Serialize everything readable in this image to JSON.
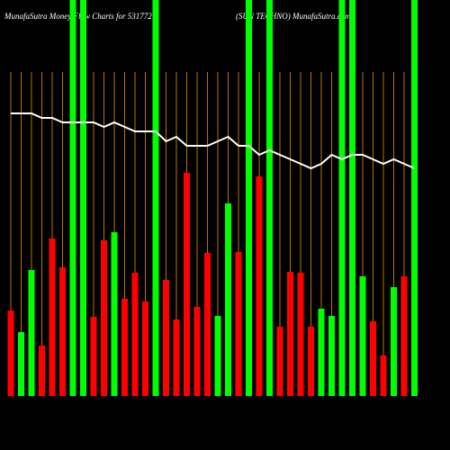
{
  "chart_data": {
    "type": "bar-line",
    "title": "MunafaSutra  Money Flow  Charts for 531772",
    "subtitle": "(SUN TECHNO) MunafaSutra.com",
    "categories": [
      null,
      null,
      null,
      null,
      null,
      null,
      null,
      null,
      null,
      null,
      null,
      null,
      null,
      null,
      null,
      null,
      null,
      null,
      null,
      null,
      null,
      null,
      null,
      null,
      null,
      null,
      null,
      null,
      null,
      null,
      null,
      null,
      null,
      null,
      null,
      null,
      null,
      null,
      null,
      null
    ],
    "ylim": [
      0,
      440
    ],
    "series": [
      {
        "kind": "bar",
        "values": [
          95,
          71,
          140,
          56,
          175,
          143,
          440,
          440,
          88,
          173,
          182,
          108,
          137,
          105,
          440,
          129,
          85,
          248,
          99,
          159,
          89,
          214,
          160,
          440,
          244,
          440,
          77,
          138,
          137,
          77,
          97,
          89,
          440,
          440,
          133,
          83,
          45,
          121,
          133,
          440
        ],
        "colors": [
          "#ff0000",
          "#00ff00",
          "#00ff00",
          "#ff0000",
          "#ff0000",
          "#ff0000",
          "#00ff00",
          "#00ff00",
          "#ff0000",
          "#ff0000",
          "#00ff00",
          "#ff0000",
          "#ff0000",
          "#ff0000",
          "#00ff00",
          "#ff0000",
          "#ff0000",
          "#ff0000",
          "#ff0000",
          "#ff0000",
          "#00ff00",
          "#00ff00",
          "#ff0000",
          "#00ff00",
          "#ff0000",
          "#00ff00",
          "#ff0000",
          "#ff0000",
          "#ff0000",
          "#ff0000",
          "#00ff00",
          "#00ff00",
          "#00ff00",
          "#00ff00",
          "#00ff00",
          "#ff0000",
          "#ff0000",
          "#00ff00",
          "#ff0000",
          "#00ff00"
        ]
      },
      {
        "kind": "line",
        "color": "#ffffff",
        "values": [
          314,
          314,
          314,
          309,
          309,
          304,
          304,
          304,
          304,
          299,
          304,
          299,
          294,
          294,
          294,
          283,
          288,
          278,
          278,
          278,
          283,
          288,
          278,
          278,
          268,
          273,
          268,
          263,
          258,
          253,
          258,
          268,
          263,
          268,
          268,
          263,
          258,
          263,
          258,
          253
        ]
      }
    ]
  }
}
